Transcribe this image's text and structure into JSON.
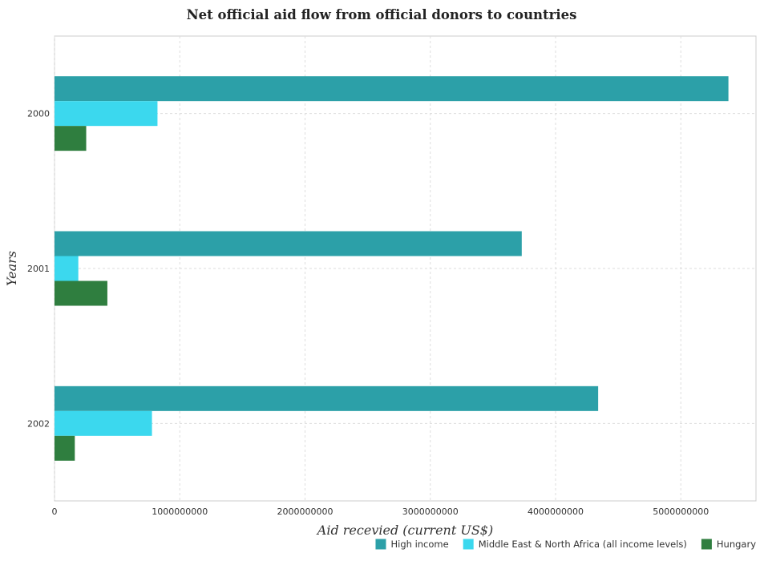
{
  "chart_data": {
    "type": "bar",
    "orientation": "horizontal",
    "title": "Net official aid flow from official donors to countries",
    "xlabel": "Aid recevied (current US$)",
    "ylabel": "Years",
    "categories": [
      "2000",
      "2001",
      "2002"
    ],
    "xlim": [
      0,
      5600000000
    ],
    "xticks": [
      0,
      1000000000,
      2000000000,
      3000000000,
      4000000000,
      5000000000
    ],
    "xtick_labels": [
      "0",
      "1000000000",
      "2000000000",
      "3000000000",
      "4000000000",
      "5000000000"
    ],
    "grid": true,
    "legend_position": "bottom-right",
    "series": [
      {
        "name": "High income",
        "color": "#2ca0a8",
        "values": [
          5380000000,
          3730000000,
          4340000000
        ]
      },
      {
        "name": "Middle East & North Africa (all income levels)",
        "color": "#3bd8ee",
        "values": [
          822000000,
          190000000,
          778000000
        ]
      },
      {
        "name": "Hungary",
        "color": "#2f7e3f",
        "values": [
          253000000,
          422000000,
          162000000
        ]
      }
    ]
  }
}
